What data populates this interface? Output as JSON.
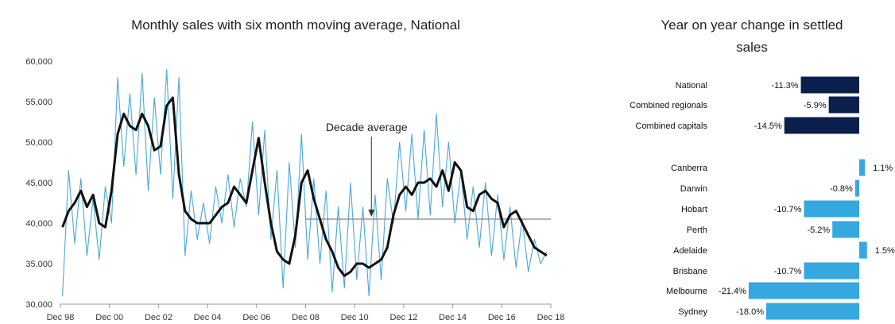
{
  "chart_data": [
    {
      "type": "line",
      "title": "Monthly sales with six month moving average, National",
      "xlabel": "",
      "ylabel": "",
      "ylim": [
        30000,
        60000
      ],
      "yticks": [
        30000,
        35000,
        40000,
        45000,
        50000,
        55000,
        60000
      ],
      "ytick_labels": [
        "30,000",
        "35,000",
        "40,000",
        "45,000",
        "50,000",
        "55,000",
        "60,000"
      ],
      "x_tick_labels": [
        "Dec 98",
        "Dec 00",
        "Dec 02",
        "Dec 04",
        "Dec 06",
        "Dec 08",
        "Dec 10",
        "Dec 12",
        "Dec 14",
        "Dec 16",
        "Dec 18"
      ],
      "x_range": [
        1998.917,
        2018.917
      ],
      "series": [
        {
          "style": "monthly",
          "color": "#4aa8d8",
          "x": [
            1999.0,
            1999.25,
            1999.5,
            1999.75,
            2000.0,
            2000.25,
            2000.5,
            2000.75,
            2001.0,
            2001.25,
            2001.5,
            2001.75,
            2002.0,
            2002.25,
            2002.5,
            2002.75,
            2003.0,
            2003.25,
            2003.5,
            2003.75,
            2004.0,
            2004.25,
            2004.5,
            2004.75,
            2005.0,
            2005.25,
            2005.5,
            2005.75,
            2006.0,
            2006.25,
            2006.5,
            2006.75,
            2007.0,
            2007.25,
            2007.5,
            2007.75,
            2008.0,
            2008.25,
            2008.5,
            2008.75,
            2009.0,
            2009.25,
            2009.5,
            2009.75,
            2010.0,
            2010.25,
            2010.5,
            2010.75,
            2011.0,
            2011.25,
            2011.5,
            2011.75,
            2012.0,
            2012.25,
            2012.5,
            2012.75,
            2013.0,
            2013.25,
            2013.5,
            2013.75,
            2014.0,
            2014.25,
            2014.5,
            2014.75,
            2015.0,
            2015.25,
            2015.5,
            2015.75,
            2016.0,
            2016.25,
            2016.5,
            2016.75,
            2017.0,
            2017.25,
            2017.5,
            2017.75,
            2018.0,
            2018.25,
            2018.5,
            2018.75
          ],
          "values": [
            31000,
            46500,
            37500,
            45500,
            36000,
            43000,
            35500,
            44500,
            40000,
            58000,
            47000,
            56000,
            46000,
            58500,
            44000,
            55500,
            46000,
            59000,
            43000,
            58000,
            36000,
            44000,
            38000,
            42500,
            37500,
            44500,
            40000,
            46000,
            39500,
            45500,
            42000,
            52500,
            41000,
            51500,
            38000,
            46500,
            32000,
            47500,
            37000,
            51000,
            35500,
            45500,
            35000,
            44000,
            31500,
            42000,
            32000,
            45000,
            33000,
            42000,
            31000,
            43500,
            33000,
            45500,
            40000,
            50000,
            41500,
            51000,
            40500,
            51500,
            41000,
            53500,
            42000,
            50000,
            40000,
            46500,
            38000,
            44500,
            37000,
            45000,
            36000,
            43500,
            35500,
            42000,
            34500,
            40500,
            34000,
            38000,
            35000,
            36500
          ]
        },
        {
          "style": "moving-average",
          "color": "#111111",
          "x": [
            1999.0,
            1999.25,
            1999.5,
            1999.75,
            2000.0,
            2000.25,
            2000.5,
            2000.75,
            2001.0,
            2001.25,
            2001.5,
            2001.75,
            2002.0,
            2002.25,
            2002.5,
            2002.75,
            2003.0,
            2003.25,
            2003.5,
            2003.75,
            2004.0,
            2004.25,
            2004.5,
            2004.75,
            2005.0,
            2005.25,
            2005.5,
            2005.75,
            2006.0,
            2006.25,
            2006.5,
            2006.75,
            2007.0,
            2007.25,
            2007.5,
            2007.75,
            2008.0,
            2008.25,
            2008.5,
            2008.75,
            2009.0,
            2009.25,
            2009.5,
            2009.75,
            2010.0,
            2010.25,
            2010.5,
            2010.75,
            2011.0,
            2011.25,
            2011.5,
            2011.75,
            2012.0,
            2012.25,
            2012.5,
            2012.75,
            2013.0,
            2013.25,
            2013.5,
            2013.75,
            2014.0,
            2014.25,
            2014.5,
            2014.75,
            2015.0,
            2015.25,
            2015.5,
            2015.75,
            2016.0,
            2016.25,
            2016.5,
            2016.75,
            2017.0,
            2017.25,
            2017.5,
            2017.75,
            2018.0,
            2018.25,
            2018.5,
            2018.75
          ],
          "values": [
            39500,
            41500,
            42500,
            44000,
            42000,
            43500,
            40000,
            39500,
            44000,
            51000,
            53500,
            52000,
            51500,
            53500,
            52000,
            49000,
            49500,
            54500,
            55500,
            46000,
            41500,
            40500,
            40000,
            40000,
            40000,
            41000,
            42000,
            42500,
            44500,
            43500,
            42500,
            46500,
            50500,
            45000,
            40000,
            36500,
            35500,
            35000,
            38500,
            45000,
            46500,
            43000,
            40500,
            38000,
            36500,
            34500,
            33500,
            34000,
            35000,
            35000,
            34500,
            35000,
            35500,
            37000,
            41000,
            43500,
            44500,
            43500,
            45000,
            45000,
            45500,
            44500,
            46500,
            44000,
            47500,
            46500,
            42000,
            41500,
            43500,
            44000,
            43000,
            42500,
            39500,
            41000,
            41500,
            40000,
            38500,
            37000,
            36500,
            36000
          ]
        }
      ],
      "annotation": {
        "text": "Decade average",
        "value": 40500,
        "x_start": 2008.917,
        "x_end": 2018.917,
        "arrow_x": 2011.6
      },
      "grid": false,
      "legend": "none"
    },
    {
      "type": "bar",
      "orientation": "horizontal",
      "title": "Year on year change in settled sales",
      "title_lines": [
        "Year on year change in settled",
        "sales"
      ],
      "categories": [
        "National",
        "Combined regionals",
        "Combined capitals",
        "Canberra",
        "Darwin",
        "Hobart",
        "Perth",
        "Adelaide",
        "Brisbane",
        "Melbourne",
        "Sydney"
      ],
      "values": [
        -11.3,
        -5.9,
        -14.5,
        1.1,
        -0.8,
        -10.7,
        -5.2,
        1.5,
        -10.7,
        -21.4,
        -18.0
      ],
      "labels": [
        "-11.3%",
        "-5.9%",
        "-14.5%",
        "1.1%",
        "-0.8%",
        "-10.7%",
        "-5.2%",
        "1.5%",
        "-10.7%",
        "-21.4%",
        "-18.0%"
      ],
      "group": [
        "aggregate",
        "aggregate",
        "aggregate",
        "city",
        "city",
        "city",
        "city",
        "city",
        "city",
        "city",
        "city"
      ],
      "colors": {
        "aggregate": "#0b1f4d",
        "city": "#35a8e0"
      },
      "xlim": [
        -22,
        2
      ],
      "grid": false,
      "legend": "none"
    }
  ]
}
